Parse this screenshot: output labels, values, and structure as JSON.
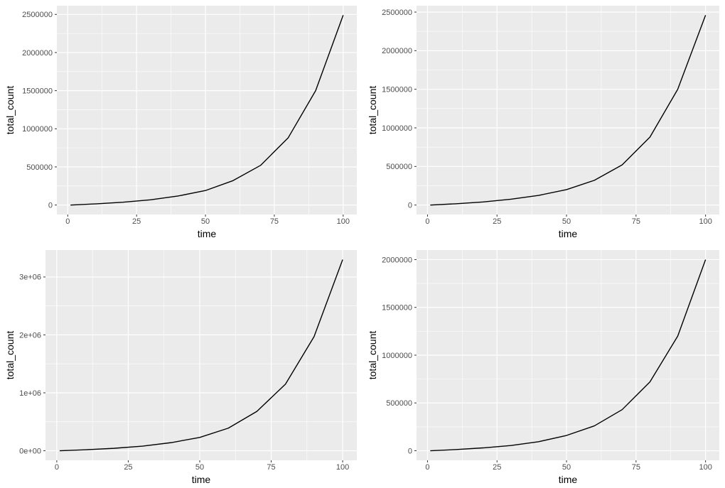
{
  "chart_data": [
    {
      "type": "line",
      "xlabel": "time",
      "ylabel": "total_count",
      "xlim": [
        -3.95,
        104.95
      ],
      "ylim": [
        -124500,
        2614500
      ],
      "xticks": [
        0,
        25,
        50,
        75,
        100
      ],
      "yticks": [
        0,
        500000,
        1000000,
        1500000,
        2000000,
        2500000
      ],
      "ytick_labels": [
        "0",
        "500000",
        "1000000",
        "1500000",
        "2000000",
        "2500000"
      ],
      "series": [
        {
          "x": [
            1,
            10,
            20,
            30,
            40,
            50,
            60,
            70,
            80,
            90,
            100
          ],
          "y": [
            0,
            15000,
            37000,
            68000,
            118000,
            190000,
            320000,
            520000,
            880000,
            1500000,
            2490000
          ]
        }
      ]
    },
    {
      "type": "line",
      "xlabel": "time",
      "ylabel": "total_count",
      "xlim": [
        -3.95,
        104.95
      ],
      "ylim": [
        -123000,
        2583000
      ],
      "xticks": [
        0,
        25,
        50,
        75,
        100
      ],
      "yticks": [
        0,
        500000,
        1000000,
        1500000,
        2000000,
        2500000
      ],
      "ytick_labels": [
        "0",
        "500000",
        "1000000",
        "1500000",
        "2000000",
        "2500000"
      ],
      "series": [
        {
          "x": [
            1,
            10,
            20,
            30,
            40,
            50,
            60,
            70,
            80,
            90,
            100
          ],
          "y": [
            0,
            16000,
            40000,
            75000,
            125000,
            200000,
            320000,
            520000,
            880000,
            1500000,
            2460000
          ]
        }
      ]
    },
    {
      "type": "line",
      "xlabel": "time",
      "ylabel": "total_count",
      "xlim": [
        -3.95,
        104.95
      ],
      "ylim": [
        -165000,
        3465000
      ],
      "xticks": [
        0,
        25,
        50,
        75,
        100
      ],
      "yticks": [
        0,
        1000000,
        2000000,
        3000000
      ],
      "ytick_labels": [
        "0e+00",
        "1e+06",
        "2e+06",
        "3e+06"
      ],
      "series": [
        {
          "x": [
            1,
            10,
            20,
            30,
            40,
            50,
            60,
            70,
            80,
            90,
            100
          ],
          "y": [
            0,
            17000,
            42000,
            80000,
            140000,
            230000,
            390000,
            680000,
            1150000,
            1970000,
            3300000
          ]
        }
      ]
    },
    {
      "type": "line",
      "xlabel": "time",
      "ylabel": "total_count",
      "xlim": [
        -3.95,
        104.95
      ],
      "ylim": [
        -100000,
        2100000
      ],
      "xticks": [
        0,
        25,
        50,
        75,
        100
      ],
      "yticks": [
        0,
        500000,
        1000000,
        1500000,
        2000000
      ],
      "ytick_labels": [
        "0",
        "500000",
        "1000000",
        "1500000",
        "2000000"
      ],
      "series": [
        {
          "x": [
            1,
            10,
            20,
            30,
            40,
            50,
            60,
            70,
            80,
            90,
            100
          ],
          "y": [
            0,
            12000,
            30000,
            55000,
            95000,
            160000,
            260000,
            430000,
            720000,
            1200000,
            2000000
          ]
        }
      ]
    }
  ]
}
